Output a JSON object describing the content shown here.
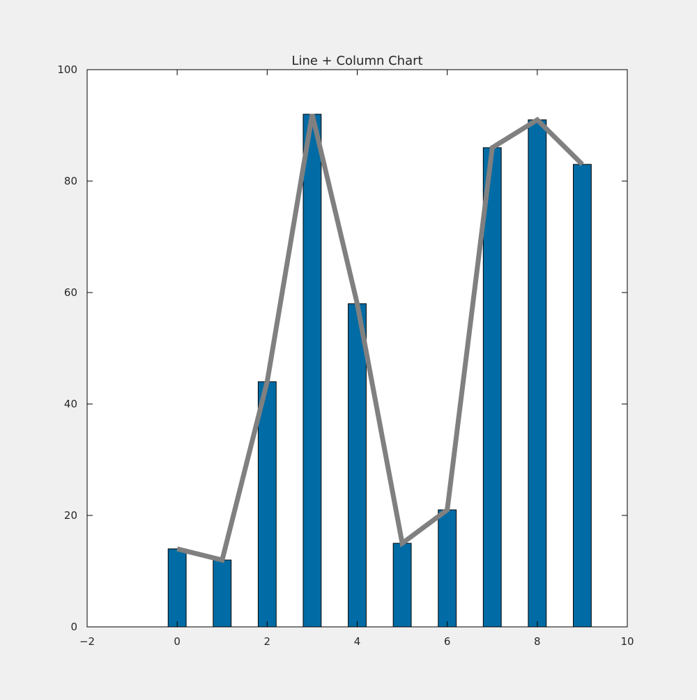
{
  "chart_data": {
    "type": "bar",
    "title": "Line + Column Chart",
    "xlabel": "",
    "ylabel": "",
    "x": [
      0,
      1,
      2,
      3,
      4,
      5,
      6,
      7,
      8,
      9
    ],
    "series": [
      {
        "type": "bar",
        "values": [
          14,
          12,
          44,
          92,
          58,
          15,
          21,
          86,
          91,
          83
        ]
      },
      {
        "type": "line",
        "values": [
          14,
          12,
          44,
          92,
          58,
          15,
          21,
          86,
          91,
          83
        ]
      }
    ],
    "xlim": [
      -2,
      10
    ],
    "ylim": [
      0,
      100
    ],
    "xticks": [
      "−2",
      "0",
      "2",
      "4",
      "6",
      "8",
      "10"
    ],
    "yticks": [
      "0",
      "20",
      "40",
      "60",
      "80",
      "100"
    ],
    "grid": false,
    "legend": "none",
    "colors": {
      "bar_fill": "#006ba4",
      "bar_edge": "#000000",
      "line": "#808080",
      "axes_background": "#ffffff",
      "figure_background": "#f0f0f0"
    }
  }
}
